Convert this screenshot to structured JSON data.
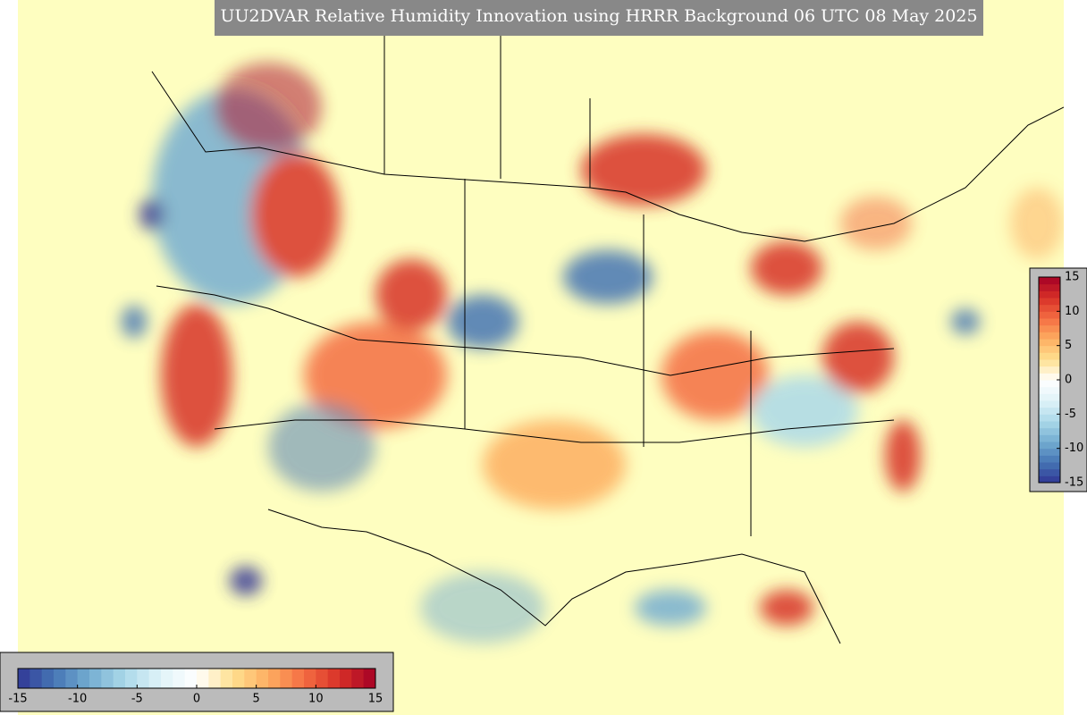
{
  "title": "UU2DVAR Relative Humidity Innovation using HRRR Background 06 UTC 08 May 2025",
  "colorbar": {
    "range": [
      -15,
      15
    ],
    "ticks": [
      -15,
      -10,
      -5,
      0,
      5,
      10,
      15
    ],
    "colormap": [
      "#313695",
      "#4575b4",
      "#74add1",
      "#abd9e9",
      "#e0f3f8",
      "#ffffff",
      "#fee090",
      "#fdae61",
      "#f46d43",
      "#d73027",
      "#a50026"
    ]
  }
}
